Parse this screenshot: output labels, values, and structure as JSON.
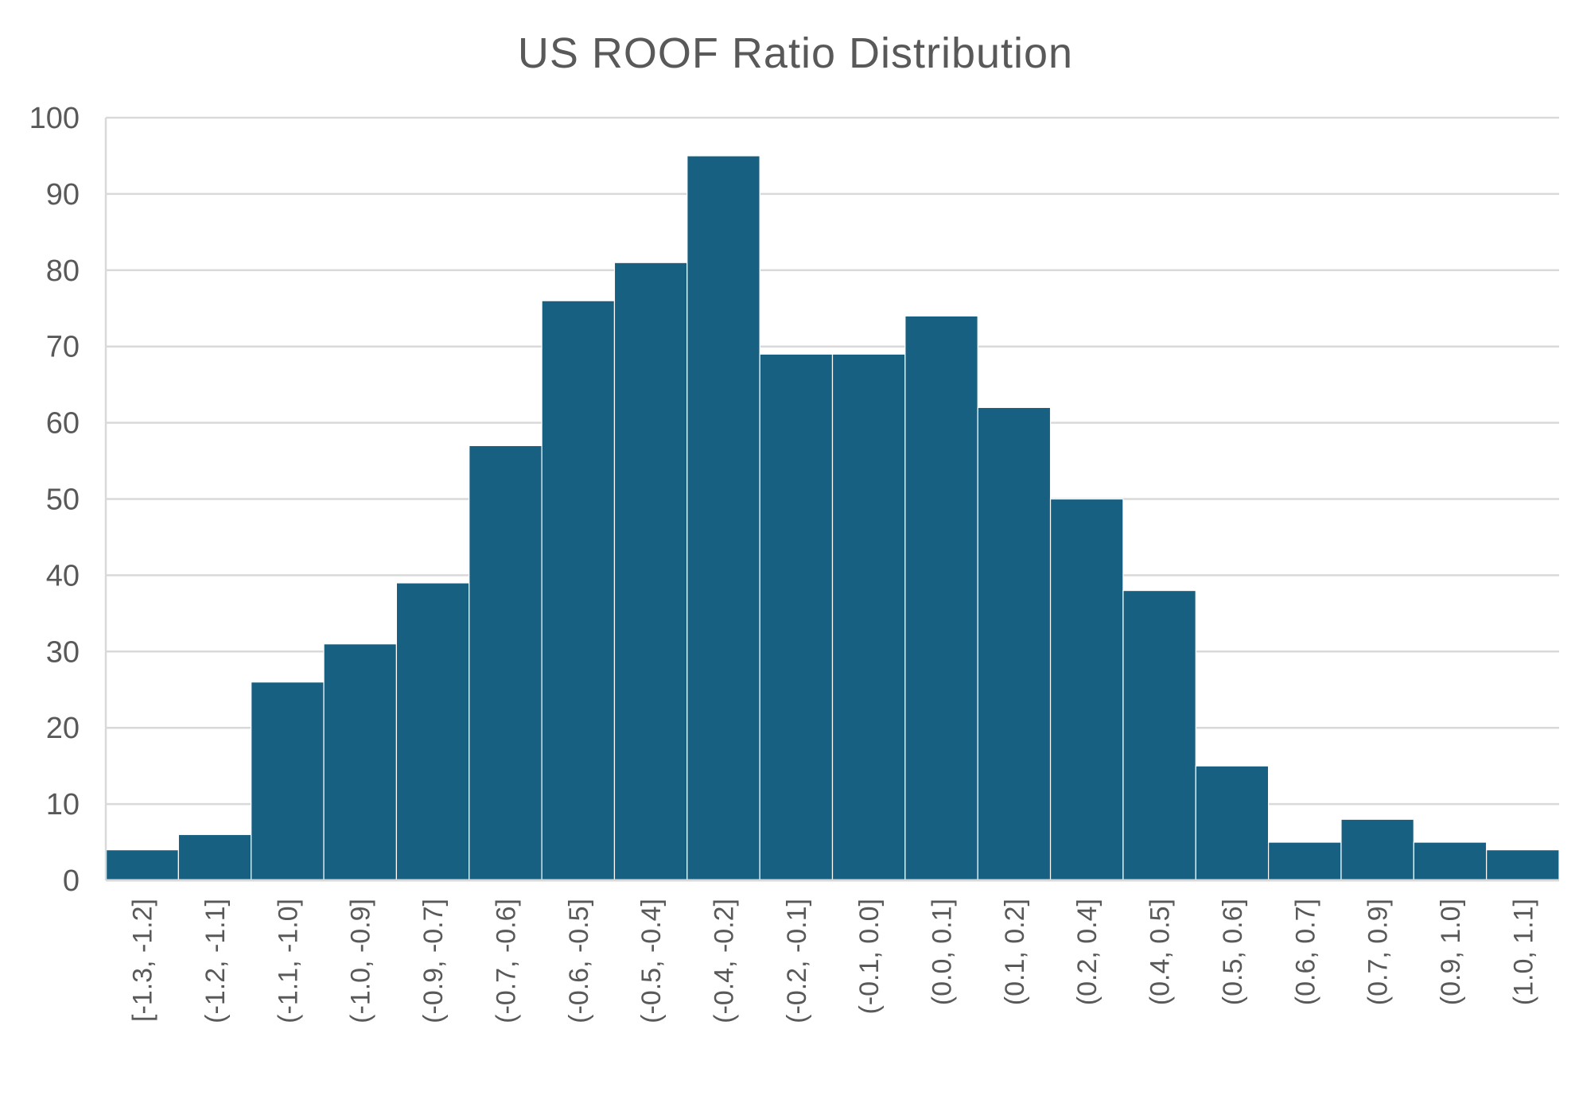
{
  "chart_data": {
    "type": "bar",
    "title": "US ROOF Ratio Distribution",
    "xlabel": "",
    "ylabel": "",
    "categories": [
      "[-1.3, -1.2]",
      "(-1.2, -1.1]",
      "(-1.1, -1.0]",
      "(-1.0, -0.9]",
      "(-0.9, -0.7]",
      "(-0.7, -0.6]",
      "(-0.6, -0.5]",
      "(-0.5, -0.4]",
      "(-0.4, -0.2]",
      "(-0.2, -0.1]",
      "(-0.1, 0.0]",
      "(0.0, 0.1]",
      "(0.1, 0.2]",
      "(0.2, 0.4]",
      "(0.4, 0.5]",
      "(0.5, 0.6]",
      "(0.6, 0.7]",
      "(0.7, 0.9]",
      "(0.9, 1.0]",
      "(1.0, 1.1]"
    ],
    "values": [
      4,
      6,
      26,
      31,
      39,
      57,
      76,
      81,
      95,
      69,
      69,
      74,
      62,
      50,
      38,
      15,
      5,
      8,
      5,
      4
    ],
    "ylim": [
      0,
      100
    ],
    "yticks": [
      "0",
      "10",
      "20",
      "30",
      "40",
      "50",
      "60",
      "70",
      "80",
      "90",
      "100"
    ],
    "grid": true,
    "legend": "none",
    "colors": {
      "bar": "#186082",
      "grid": "#d9d9d9",
      "text": "#595959",
      "bar_edge": "#ffffff"
    }
  }
}
